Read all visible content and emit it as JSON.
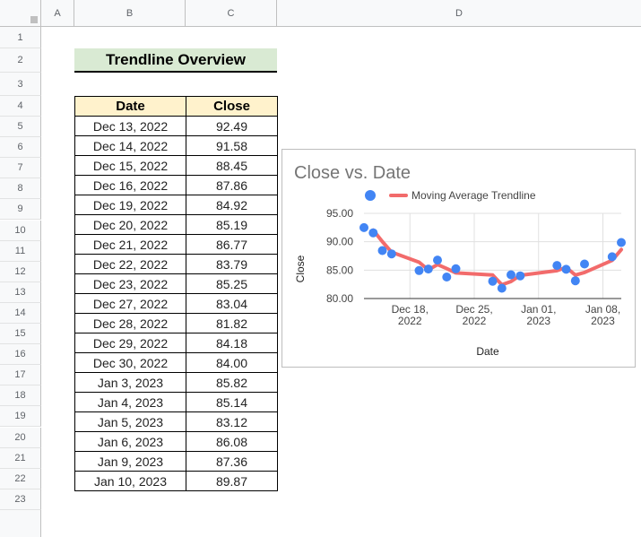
{
  "columns": [
    "A",
    "B",
    "C",
    "D"
  ],
  "rows": [
    "1",
    "2",
    "3",
    "4",
    "5",
    "6",
    "7",
    "8",
    "9",
    "10",
    "11",
    "12",
    "13",
    "14",
    "15",
    "16",
    "17",
    "18",
    "19",
    "20",
    "21",
    "22",
    "23"
  ],
  "title": "Trendline Overview",
  "table": {
    "headers": [
      "Date",
      "Close"
    ],
    "rows": [
      [
        "Dec 13, 2022",
        "92.49"
      ],
      [
        "Dec 14, 2022",
        "91.58"
      ],
      [
        "Dec 15, 2022",
        "88.45"
      ],
      [
        "Dec 16, 2022",
        "87.86"
      ],
      [
        "Dec 19, 2022",
        "84.92"
      ],
      [
        "Dec 20, 2022",
        "85.19"
      ],
      [
        "Dec 21, 2022",
        "86.77"
      ],
      [
        "Dec 22, 2022",
        "83.79"
      ],
      [
        "Dec 23, 2022",
        "85.25"
      ],
      [
        "Dec 27, 2022",
        "83.04"
      ],
      [
        "Dec 28, 2022",
        "81.82"
      ],
      [
        "Dec 29, 2022",
        "84.18"
      ],
      [
        "Dec 30, 2022",
        "84.00"
      ],
      [
        "Jan 3, 2023",
        "85.82"
      ],
      [
        "Jan 4, 2023",
        "85.14"
      ],
      [
        "Jan 5, 2023",
        "83.12"
      ],
      [
        "Jan 6, 2023",
        "86.08"
      ],
      [
        "Jan 9, 2023",
        "87.36"
      ],
      [
        "Jan 10, 2023",
        "89.87"
      ]
    ]
  },
  "chart_data": {
    "type": "scatter",
    "title": "Close vs. Date",
    "xlabel": "Date",
    "ylabel": "Close",
    "legend": {
      "position": "top",
      "entries": [
        "",
        "Moving Average Trendline"
      ]
    },
    "x": [
      "2022-12-13",
      "2022-12-14",
      "2022-12-15",
      "2022-12-16",
      "2022-12-19",
      "2022-12-20",
      "2022-12-21",
      "2022-12-22",
      "2022-12-23",
      "2022-12-27",
      "2022-12-28",
      "2022-12-29",
      "2022-12-30",
      "2023-01-03",
      "2023-01-04",
      "2023-01-05",
      "2023-01-06",
      "2023-01-09",
      "2023-01-10"
    ],
    "y": [
      92.49,
      91.58,
      88.45,
      87.86,
      84.92,
      85.19,
      86.77,
      83.79,
      85.25,
      83.04,
      81.82,
      84.18,
      84.0,
      85.82,
      85.14,
      83.12,
      86.08,
      87.36,
      89.87
    ],
    "trendline": {
      "name": "Moving Average Trendline",
      "x": [
        "2022-12-14",
        "2022-12-15",
        "2022-12-16",
        "2022-12-19",
        "2022-12-20",
        "2022-12-21",
        "2022-12-22",
        "2022-12-23",
        "2022-12-27",
        "2022-12-28",
        "2022-12-29",
        "2022-12-30",
        "2023-01-03",
        "2023-01-04",
        "2023-01-05",
        "2023-01-06",
        "2023-01-09",
        "2023-01-10"
      ],
      "y": [
        92.04,
        90.02,
        88.16,
        86.39,
        85.06,
        85.98,
        85.28,
        84.52,
        84.15,
        82.43,
        83.0,
        84.09,
        84.91,
        85.48,
        84.13,
        84.6,
        86.72,
        88.62
      ]
    },
    "ylim": [
      80,
      95
    ],
    "yticks": [
      "80.00",
      "85.00",
      "90.00",
      "95.00"
    ],
    "xticks": [
      {
        "date": "2022-12-18",
        "line1": "Dec 18,",
        "line2": "2022"
      },
      {
        "date": "2022-12-25",
        "line1": "Dec 25,",
        "line2": "2022"
      },
      {
        "date": "2023-01-01",
        "line1": "Jan 01,",
        "line2": "2023"
      },
      {
        "date": "2023-01-08",
        "line1": "Jan 08,",
        "line2": "2023"
      }
    ],
    "xlim": [
      "2022-12-13",
      "2023-01-10"
    ],
    "grid": true,
    "colors": {
      "points": "#4285f4",
      "trendline": "#f26b6b"
    }
  }
}
